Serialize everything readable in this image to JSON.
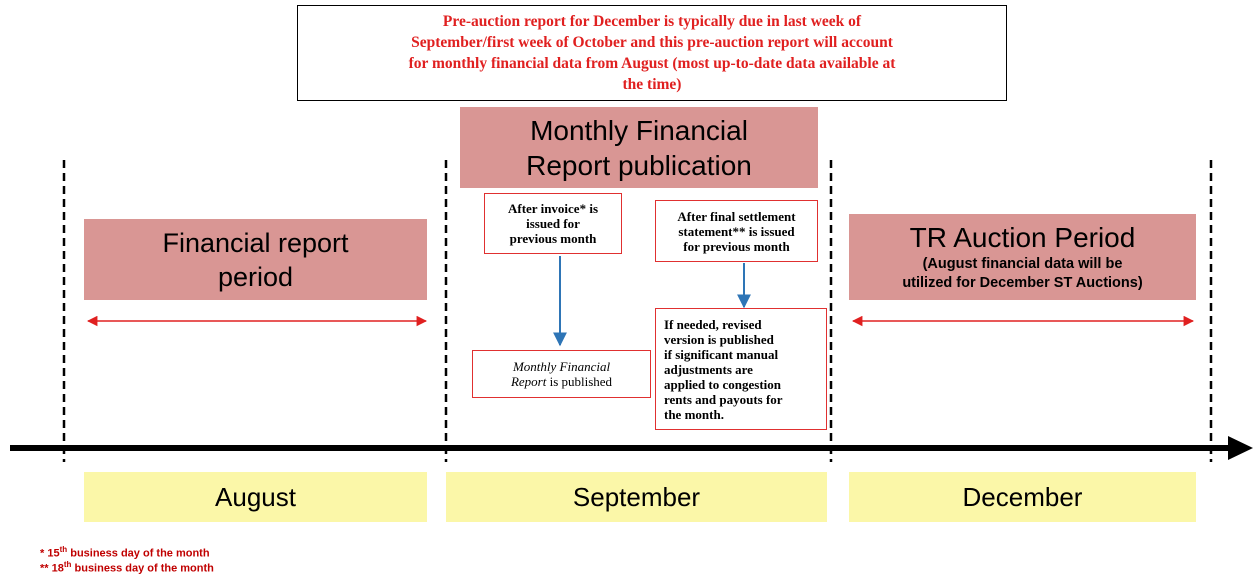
{
  "note": {
    "lines": [
      "Pre-auction report for December is typically due in last week of",
      "September/first  week of October and this pre-auction report will account",
      "for monthly financial data from August (most up-to-date data available at",
      "the time)"
    ]
  },
  "publication": {
    "lines": [
      "Monthly  Financial",
      "Report publication"
    ]
  },
  "report_period": {
    "lines": [
      "Financial  report",
      "period"
    ]
  },
  "auction": {
    "title": "TR Auction Period",
    "lines": [
      "(August financial data will be",
      "utilized for December ST Auctions)"
    ]
  },
  "invoice": {
    "lines": [
      "After invoice* is",
      "issued  for",
      "previous month"
    ]
  },
  "settlement": {
    "lines": [
      "After final settlement",
      "statement** is issued",
      "for previous month"
    ]
  },
  "published": {
    "lines": [
      "Monthly Financial",
      "Report",
      "is published"
    ]
  },
  "revision": {
    "lines": [
      "If needed, revised",
      "version is published",
      "if significant manual",
      "adjustments are",
      "applied to congestion",
      "rents and payouts for",
      "the month."
    ]
  },
  "months": [
    "August",
    "September",
    "December"
  ],
  "footnotes": [
    {
      "marker": "*",
      "number": "15",
      "suffix": "th",
      "text": "business day of the month"
    },
    {
      "marker": "**",
      "number": "18",
      "suffix": "th",
      "text": "business day of the month"
    }
  ]
}
